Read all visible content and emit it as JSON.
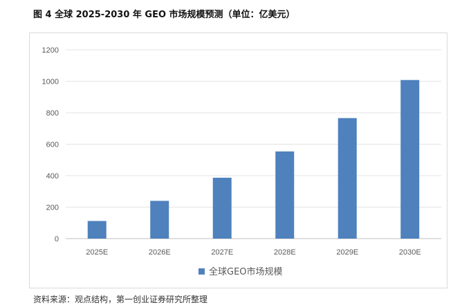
{
  "figure": {
    "title": "图 4 全球 2025-2030 年 GEO 市场规模预测（单位：亿美元）",
    "source": "资料来源：观点结构，第一创业证券研究所整理"
  },
  "chart_data": {
    "type": "bar",
    "title": "",
    "xlabel": "",
    "ylabel": "",
    "categories": [
      "2025E",
      "2026E",
      "2027E",
      "2028E",
      "2029E",
      "2030E"
    ],
    "series": [
      {
        "name": "全球GEO市场规模",
        "values": [
          112,
          240,
          387,
          554,
          766,
          1008
        ],
        "color": "#4f81bd"
      }
    ],
    "ylim": [
      0,
      1200
    ],
    "yticks": [
      0,
      200,
      400,
      600,
      800,
      1000,
      1200
    ],
    "grid": true,
    "legend_position": "bottom"
  }
}
